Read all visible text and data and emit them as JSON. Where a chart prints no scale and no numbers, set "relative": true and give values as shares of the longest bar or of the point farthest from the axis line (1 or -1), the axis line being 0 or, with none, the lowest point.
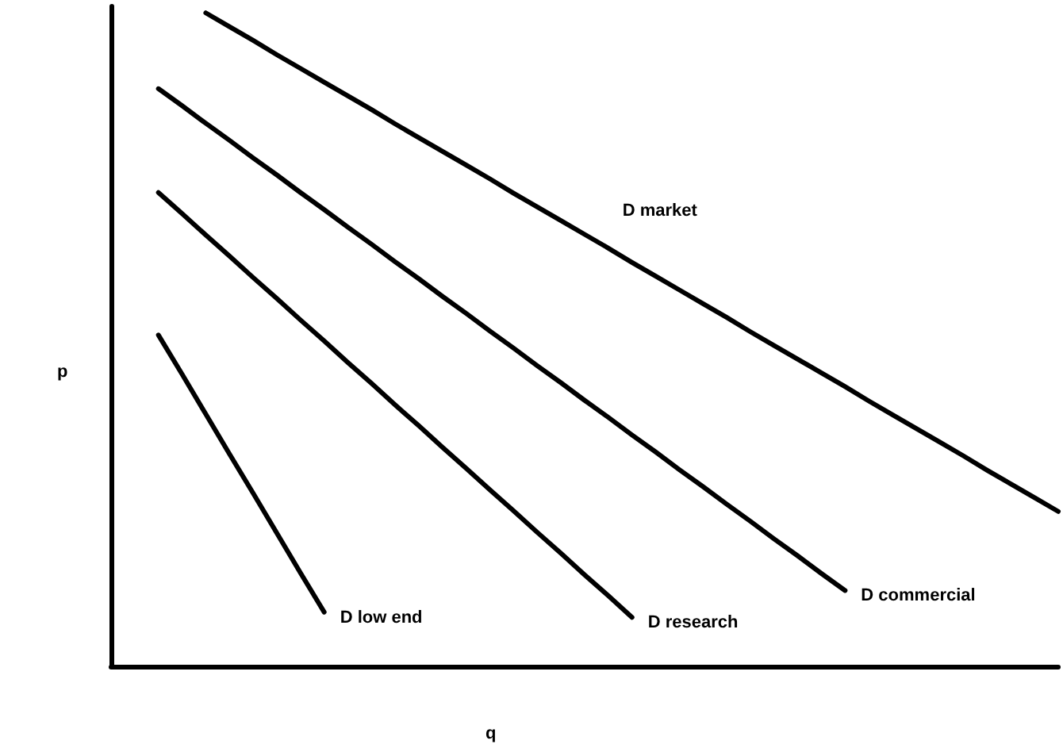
{
  "chart_data": {
    "type": "line",
    "relative": true,
    "xlabel": "q",
    "ylabel": "p",
    "marker": "none",
    "line_style": "solid",
    "categories": [
      null,
      null,
      null,
      null,
      null,
      null,
      null,
      null,
      null,
      null,
      null,
      null,
      null,
      null,
      null,
      null,
      null,
      null,
      null,
      null,
      null,
      null,
      null,
      null,
      null,
      null,
      null,
      null,
      null,
      null,
      null,
      null,
      null,
      null,
      null,
      null,
      null,
      null,
      null,
      null,
      null
    ],
    "series": [
      {
        "name": "D low end",
        "color": "#000000",
        "values": [
          null,
          null,
          0.507,
          0.447,
          0.386,
          0.325,
          0.265,
          0.204,
          0.143,
          0.083,
          null,
          null,
          null,
          null,
          null,
          null,
          null,
          null,
          null,
          null,
          null,
          null,
          null,
          null,
          null,
          null,
          null,
          null,
          null,
          null,
          null,
          null,
          null,
          null,
          null,
          null,
          null,
          null,
          null,
          null,
          null
        ]
      },
      {
        "name": "D research",
        "color": "#000000",
        "values": [
          null,
          null,
          0.725,
          0.693,
          0.66,
          0.628,
          0.595,
          0.563,
          0.53,
          0.498,
          0.465,
          0.433,
          0.4,
          0.368,
          0.335,
          0.303,
          0.27,
          0.238,
          0.205,
          0.173,
          0.14,
          0.108,
          0.075,
          null,
          null,
          null,
          null,
          null,
          null,
          null,
          null,
          null,
          null,
          null,
          null,
          null,
          null,
          null,
          null,
          null,
          null
        ]
      },
      {
        "name": "D commercial",
        "color": "#000000",
        "values": [
          null,
          null,
          0.884,
          0.858,
          0.831,
          0.805,
          0.778,
          0.752,
          0.725,
          0.699,
          0.672,
          0.646,
          0.619,
          0.593,
          0.566,
          0.54,
          0.513,
          0.487,
          0.46,
          0.434,
          0.407,
          0.381,
          0.354,
          0.328,
          0.301,
          0.275,
          0.248,
          0.222,
          0.195,
          0.169,
          0.142,
          0.116,
          null,
          null,
          null,
          null,
          null,
          null,
          null,
          null,
          null
        ]
      },
      {
        "name": "D market",
        "color": "#000000",
        "values": [
          null,
          null,
          null,
          null,
          1,
          0.979,
          0.958,
          0.936,
          0.915,
          0.894,
          0.873,
          0.852,
          0.83,
          0.809,
          0.788,
          0.767,
          0.746,
          0.724,
          0.703,
          0.682,
          0.661,
          0.64,
          0.618,
          0.597,
          0.576,
          0.555,
          0.534,
          0.512,
          0.491,
          0.47,
          0.449,
          0.428,
          0.406,
          0.385,
          0.364,
          0.343,
          0.322,
          0.3,
          0.279,
          0.258,
          0.237
        ]
      }
    ]
  }
}
